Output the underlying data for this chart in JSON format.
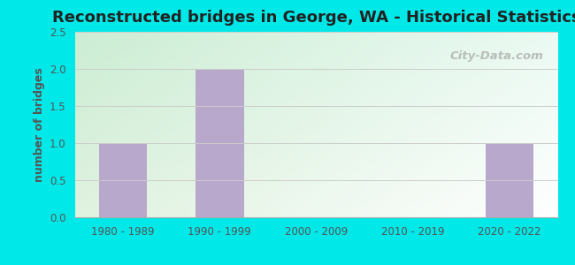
{
  "title": "Reconstructed bridges in George, WA - Historical Statistics",
  "categories": [
    "1980 - 1989",
    "1990 - 1999",
    "2000 - 2009",
    "2010 - 2019",
    "2020 - 2022"
  ],
  "values": [
    1,
    2,
    0,
    0,
    1
  ],
  "bar_color": "#b8a8cc",
  "ylabel": "number of bridges",
  "ylim": [
    0,
    2.5
  ],
  "yticks": [
    0,
    0.5,
    1,
    1.5,
    2,
    2.5
  ],
  "background_outer": "#00e8e8",
  "title_fontsize": 13,
  "axis_label_fontsize": 9,
  "tick_fontsize": 8.5,
  "watermark": "City-Data.com",
  "bar_width": 0.5,
  "ylabel_color": "#555555",
  "tick_color": "#555555",
  "title_color": "#222222"
}
